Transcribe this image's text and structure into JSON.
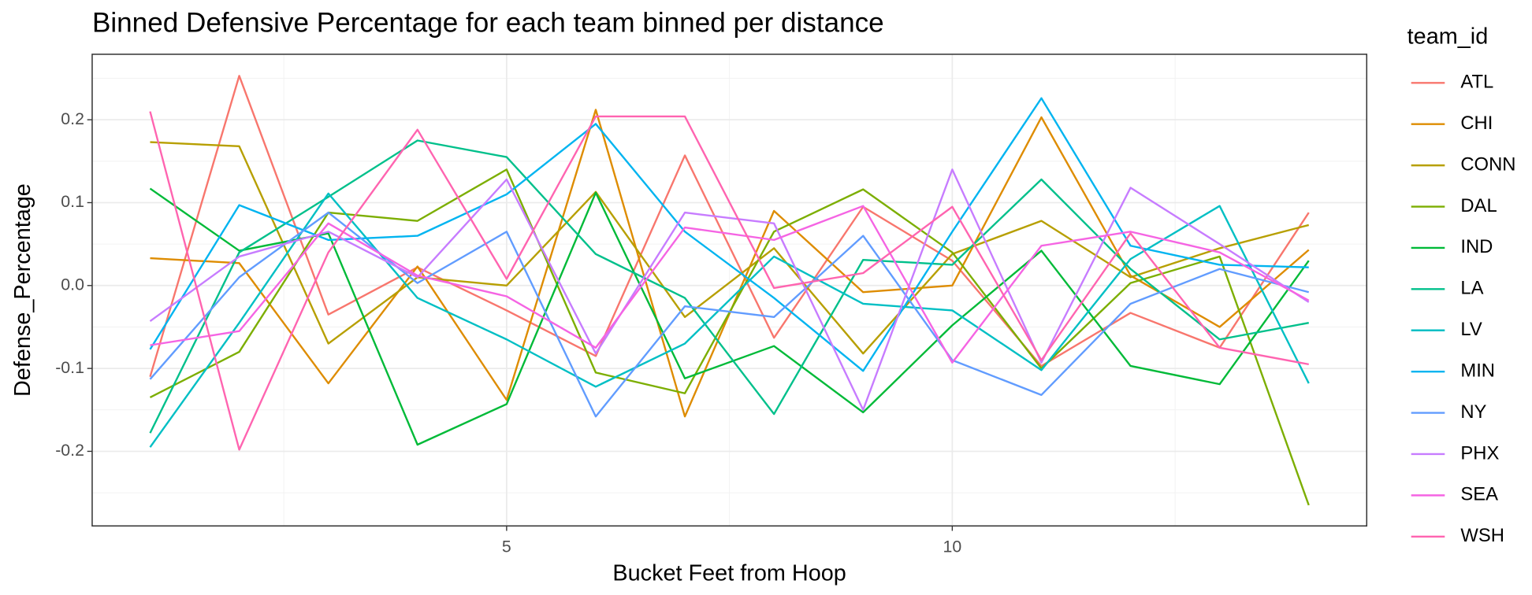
{
  "chart_data": {
    "type": "line",
    "title": "Binned Defensive Percentage for each team binned per distance",
    "x_label": "Bucket Feet from Hoop",
    "y_label": "Defense_Percentage",
    "legend_title": "team_id",
    "legend": "right",
    "grid": true,
    "x": [
      1,
      2,
      3,
      4,
      5,
      6,
      7,
      8,
      9,
      10,
      11,
      12,
      13,
      14
    ],
    "xlim": [
      0.35,
      14.65
    ],
    "xticks": [
      5,
      10
    ],
    "xminor": [
      2.5,
      7.5,
      12.5
    ],
    "ylim": [
      -0.29,
      0.279
    ],
    "yticks": [
      {
        "value": -0.2,
        "label": "-0.2"
      },
      {
        "value": -0.1,
        "label": "-0.1"
      },
      {
        "value": 0,
        "label": "0.0"
      },
      0.1,
      0.2
    ],
    "yminor": [
      -0.25,
      -0.15,
      -0.05,
      0.05,
      0.15,
      0.25
    ],
    "series": [
      {
        "name": "ATL",
        "color": "#F8766D",
        "values": [
          -0.11,
          0.253,
          -0.035,
          0.022,
          -0.03,
          -0.085,
          0.157,
          -0.063,
          0.095,
          0.03,
          -0.097,
          -0.033,
          -0.075,
          0.088
        ]
      },
      {
        "name": "CHI",
        "color": "#DE8C00",
        "values": [
          0.033,
          0.027,
          -0.118,
          0.023,
          -0.138,
          0.212,
          -0.158,
          0.09,
          -0.008,
          0.0,
          0.203,
          0.012,
          -0.05,
          0.043
        ]
      },
      {
        "name": "CONN",
        "color": "#B79F00",
        "values": [
          0.173,
          0.168,
          -0.07,
          0.01,
          0.0,
          0.113,
          -0.038,
          0.045,
          -0.082,
          0.038,
          0.078,
          0.01,
          0.045,
          0.073
        ]
      },
      {
        "name": "DAL",
        "color": "#7CAE00",
        "values": [
          -0.135,
          -0.08,
          0.088,
          0.078,
          0.14,
          -0.105,
          -0.13,
          0.065,
          0.116,
          0.04,
          -0.1,
          0.003,
          0.035,
          -0.265
        ]
      },
      {
        "name": "IND",
        "color": "#00BA38",
        "values": [
          0.117,
          0.042,
          0.063,
          -0.192,
          -0.143,
          0.112,
          -0.112,
          -0.073,
          -0.153,
          -0.048,
          0.042,
          -0.097,
          -0.119,
          0.03
        ]
      },
      {
        "name": "LA",
        "color": "#00C08B",
        "values": [
          -0.178,
          0.04,
          0.107,
          0.175,
          0.155,
          0.038,
          -0.015,
          -0.155,
          0.031,
          0.025,
          0.128,
          0.02,
          -0.065,
          -0.045
        ]
      },
      {
        "name": "LV",
        "color": "#00BFC4",
        "values": [
          -0.195,
          -0.045,
          0.111,
          -0.015,
          -0.065,
          -0.122,
          -0.07,
          0.035,
          -0.022,
          -0.03,
          -0.102,
          0.032,
          0.096,
          -0.118
        ]
      },
      {
        "name": "MIN",
        "color": "#00B4F0",
        "values": [
          -0.077,
          0.097,
          0.055,
          0.06,
          0.11,
          0.195,
          0.065,
          -0.015,
          -0.103,
          0.065,
          0.226,
          0.048,
          0.025,
          0.022
        ]
      },
      {
        "name": "NY",
        "color": "#619CFF",
        "values": [
          -0.113,
          0.01,
          0.088,
          0.003,
          0.065,
          -0.158,
          -0.025,
          -0.038,
          0.06,
          -0.09,
          -0.132,
          -0.022,
          0.02,
          -0.008
        ]
      },
      {
        "name": "PHX",
        "color": "#C77CFF",
        "values": [
          -0.043,
          0.035,
          0.065,
          0.01,
          0.128,
          -0.082,
          0.088,
          0.075,
          -0.15,
          0.14,
          -0.093,
          0.118,
          0.05,
          -0.02
        ]
      },
      {
        "name": "SEA",
        "color": "#F564E3",
        "values": [
          -0.072,
          -0.055,
          0.075,
          0.012,
          -0.013,
          -0.075,
          0.07,
          0.055,
          0.096,
          -0.093,
          0.048,
          0.065,
          0.04,
          -0.018
        ]
      },
      {
        "name": "WSH",
        "color": "#FF64B0",
        "values": [
          0.21,
          -0.198,
          0.04,
          0.188,
          0.008,
          0.204,
          0.204,
          -0.003,
          0.015,
          0.095,
          -0.09,
          0.063,
          -0.075,
          -0.095
        ]
      }
    ]
  }
}
